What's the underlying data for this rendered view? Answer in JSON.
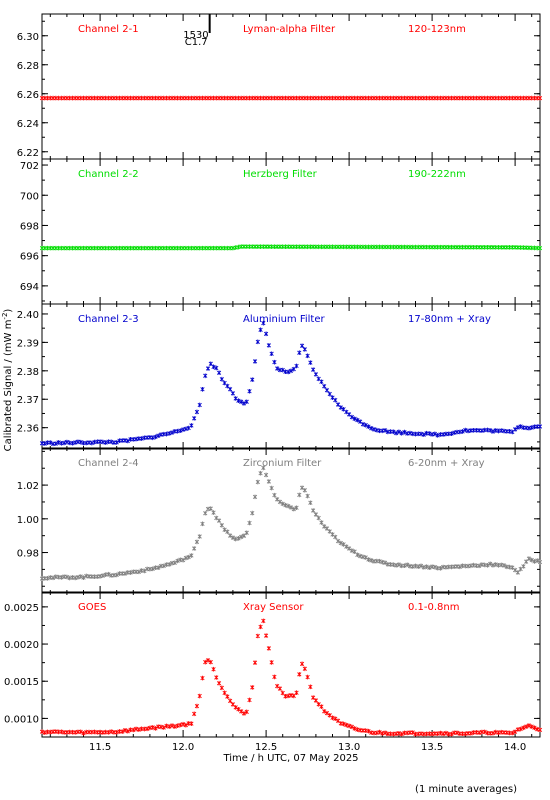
{
  "figure": {
    "ylabel": "Calibrated Signal / (mW m",
    "ylabel_sup": "-2",
    "ylabel_close": ")",
    "xlabel": "Time / h UTC, 07 May 2025",
    "footnote": "(1 minute averages)",
    "flare_marker": {
      "time": "1530",
      "class": "C1.7",
      "x": 12.16
    }
  },
  "chart_data": [
    {
      "type": "scatter",
      "channel": "Channel 2-1",
      "filter": "Lyman-alpha Filter",
      "band": "120-123nm",
      "color": "#ff0000",
      "xlim": [
        11.15,
        14.15
      ],
      "ylim": [
        6.215,
        6.315
      ],
      "yticks": [
        6.22,
        6.24,
        6.26,
        6.28,
        6.3
      ],
      "yticklabels": [
        "6.22",
        "6.24",
        "6.26",
        "6.28",
        "6.30"
      ],
      "series": [
        {
          "x": [
            11.15,
            14.15
          ],
          "y": [
            6.257,
            6.257
          ]
        }
      ]
    },
    {
      "type": "scatter",
      "channel": "Channel 2-2",
      "filter": "Herzberg Filter",
      "band": "190-222nm",
      "color": "#00dd00",
      "xlim": [
        11.15,
        14.15
      ],
      "ylim": [
        692.8,
        702.4
      ],
      "yticks": [
        694,
        696,
        698,
        700,
        702
      ],
      "yticklabels": [
        "694",
        "696",
        "698",
        "700",
        "702"
      ],
      "series": [
        {
          "x": [
            11.15,
            12.3,
            12.35,
            14.0,
            14.15
          ],
          "y": [
            696.5,
            696.5,
            696.6,
            696.55,
            696.5
          ]
        }
      ]
    },
    {
      "type": "scatter",
      "channel": "Channel 2-3",
      "filter": "Aluminium Filter",
      "band": "17-80nm + Xray",
      "color": "#0000cc",
      "xlim": [
        11.15,
        14.15
      ],
      "ylim": [
        2.3525,
        2.4035
      ],
      "yticks": [
        2.36,
        2.37,
        2.38,
        2.39,
        2.4
      ],
      "yticklabels": [
        "2.36",
        "2.37",
        "2.38",
        "2.39",
        "2.40"
      ],
      "series": [
        {
          "x": [
            11.15,
            11.4,
            11.6,
            11.8,
            11.95,
            12.05,
            12.1,
            12.13,
            12.16,
            12.2,
            12.25,
            12.28,
            12.32,
            12.38,
            12.42,
            12.45,
            12.48,
            12.52,
            12.56,
            12.62,
            12.68,
            12.71,
            12.74,
            12.78,
            12.85,
            12.95,
            13.05,
            13.15,
            13.25,
            13.4,
            13.55,
            13.7,
            13.85,
            13.98,
            14.02,
            14.08,
            14.15
          ],
          "y": [
            2.3545,
            2.3548,
            2.355,
            2.3565,
            2.3585,
            2.3605,
            2.368,
            2.378,
            2.3825,
            2.381,
            2.3755,
            2.374,
            2.37,
            2.3685,
            2.3775,
            2.39,
            2.3975,
            2.3885,
            2.381,
            2.3795,
            2.3805,
            2.389,
            2.387,
            2.3805,
            2.3745,
            2.367,
            2.3625,
            2.3595,
            2.3585,
            2.358,
            2.3575,
            2.359,
            2.359,
            2.3585,
            2.3605,
            2.36,
            2.3605
          ]
        }
      ]
    },
    {
      "type": "scatter",
      "channel": "Channel 2-4",
      "filter": "Zirconium Filter",
      "band": "6-20nm + Xray",
      "color": "#7f7f7f",
      "xlim": [
        11.15,
        14.15
      ],
      "ylim": [
        0.956,
        1.042
      ],
      "yticks": [
        0.98,
        1.0,
        1.02
      ],
      "yticklabels": [
        "0.98",
        "1.00",
        "1.02"
      ],
      "series": [
        {
          "x": [
            11.15,
            11.4,
            11.6,
            11.8,
            11.95,
            12.05,
            12.1,
            12.13,
            12.16,
            12.2,
            12.25,
            12.28,
            12.32,
            12.38,
            12.42,
            12.45,
            12.48,
            12.52,
            12.56,
            12.62,
            12.68,
            12.71,
            12.74,
            12.78,
            12.85,
            12.95,
            13.05,
            13.15,
            13.25,
            13.4,
            13.55,
            13.7,
            13.85,
            13.98,
            14.02,
            14.08,
            14.15
          ],
          "y": [
            0.965,
            0.9655,
            0.967,
            0.97,
            0.974,
            0.978,
            0.99,
            1.003,
            1.0075,
            1.001,
            0.9935,
            0.9905,
            0.9875,
            0.9905,
            1.005,
            1.022,
            1.031,
            1.0215,
            1.0115,
            1.0075,
            1.0055,
            1.0185,
            1.0165,
            1.0055,
            0.9955,
            0.9855,
            0.979,
            0.975,
            0.973,
            0.972,
            0.971,
            0.972,
            0.973,
            0.9715,
            0.968,
            0.976,
            0.9745
          ]
        }
      ]
    },
    {
      "type": "scatter",
      "channel": "GOES",
      "filter": "Xray Sensor",
      "band": "0.1-0.8nm",
      "color": "#ff0000",
      "xlim": [
        11.15,
        14.15
      ],
      "ylim": [
        0.00075,
        0.0027
      ],
      "yticks": [
        0.001,
        0.0015,
        0.002,
        0.0025
      ],
      "yticklabels": [
        "0.0010",
        "0.0015",
        "0.0020",
        "0.0025"
      ],
      "series": [
        {
          "x": [
            11.15,
            11.4,
            11.6,
            11.8,
            11.95,
            12.05,
            12.1,
            12.13,
            12.16,
            12.2,
            12.25,
            12.28,
            12.32,
            12.38,
            12.42,
            12.45,
            12.48,
            12.52,
            12.56,
            12.62,
            12.68,
            12.71,
            12.74,
            12.78,
            12.85,
            12.95,
            13.05,
            13.15,
            13.25,
            13.4,
            13.55,
            13.7,
            13.85,
            13.98,
            14.02,
            14.08,
            14.15
          ],
          "y": [
            0.00082,
            0.00081,
            0.00082,
            0.00087,
            0.0009,
            0.00093,
            0.0013,
            0.00175,
            0.0018,
            0.00155,
            0.00135,
            0.00125,
            0.00115,
            0.00105,
            0.00145,
            0.0021,
            0.00235,
            0.0019,
            0.00145,
            0.0013,
            0.0013,
            0.00175,
            0.00165,
            0.0013,
            0.0011,
            0.00093,
            0.00085,
            0.00081,
            0.0008,
            0.0008,
            0.0008,
            0.0008,
            0.00081,
            0.0008,
            0.00085,
            0.0009,
            0.00085
          ]
        }
      ]
    }
  ],
  "xaxis": {
    "xlim": [
      11.15,
      14.15
    ],
    "ticks": [
      11.5,
      12.0,
      12.5,
      13.0,
      13.5,
      14.0
    ],
    "ticklabels": [
      "11.5",
      "12.0",
      "12.5",
      "13.0",
      "13.5",
      "14.0"
    ]
  }
}
